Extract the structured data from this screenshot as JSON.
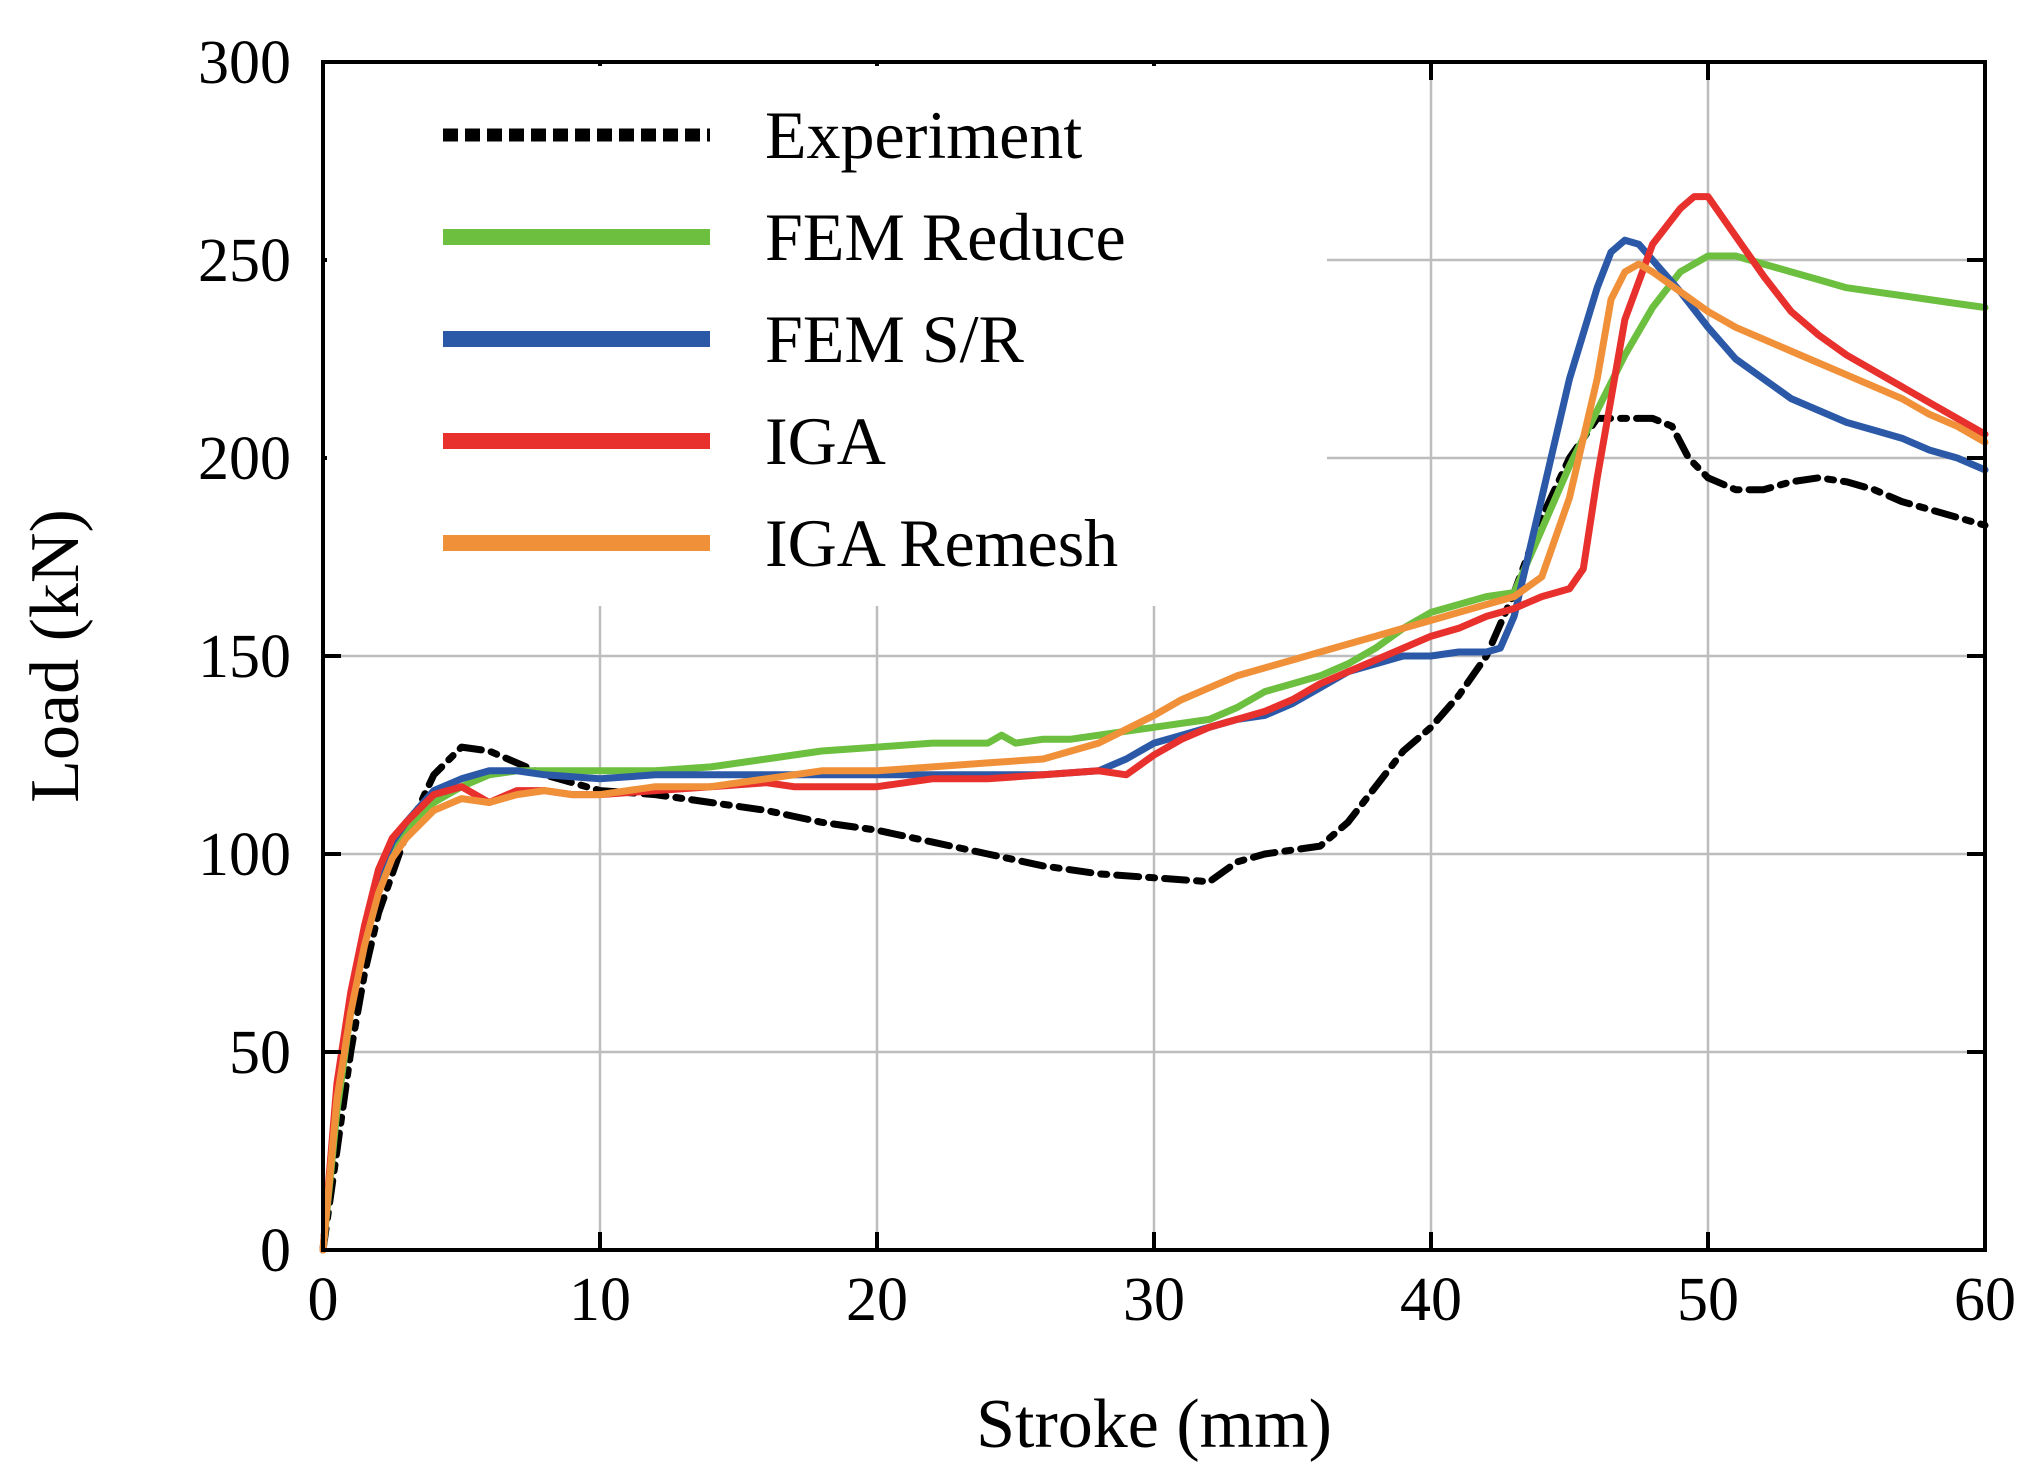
{
  "chart_data": {
    "type": "line",
    "title": "",
    "xlabel": "Stroke (mm)",
    "ylabel": "Load (kN)",
    "xlim": [
      0,
      60
    ],
    "ylim": [
      0,
      300
    ],
    "xticks": [
      0,
      10,
      20,
      30,
      40,
      50,
      60
    ],
    "yticks": [
      0,
      50,
      100,
      150,
      200,
      250,
      300
    ],
    "grid": true,
    "legend_position": "top-left",
    "series": [
      {
        "name": "Experiment",
        "color": "#000000",
        "style": "dash-dot",
        "x": [
          0,
          0.5,
          1,
          1.5,
          2,
          2.5,
          3,
          4,
          5,
          6,
          8,
          10,
          12,
          14,
          16,
          18,
          20,
          22,
          24,
          26,
          28,
          30,
          32,
          33,
          34,
          36,
          37,
          38,
          39,
          40,
          41,
          42,
          43,
          44,
          45,
          46,
          47,
          48,
          48.7,
          49.3,
          50,
          51,
          52,
          53,
          54,
          55,
          56,
          57,
          58,
          59,
          60
        ],
        "y": [
          0,
          25,
          50,
          70,
          85,
          95,
          105,
          120,
          127,
          126,
          120,
          116,
          115,
          113,
          111,
          108,
          106,
          103,
          100,
          97,
          95,
          94,
          93,
          98,
          100,
          102,
          108,
          117,
          126,
          132,
          140,
          150,
          166,
          185,
          200,
          210,
          210,
          210,
          208,
          200,
          195,
          192,
          192,
          194,
          195,
          194,
          192,
          189,
          187,
          185,
          183
        ]
      },
      {
        "name": "FEM Reduce",
        "color": "#6cbf3f",
        "style": "solid",
        "x": [
          0,
          0.5,
          1,
          1.5,
          2,
          2.5,
          3,
          4,
          5,
          6,
          7,
          8,
          10,
          12,
          14,
          16,
          18,
          20,
          22,
          24,
          24.5,
          25,
          26,
          27,
          28,
          29,
          30,
          31,
          32,
          33,
          34,
          35,
          36,
          37,
          38,
          39,
          40,
          41,
          42,
          43,
          44,
          45,
          46,
          47,
          48,
          49,
          50,
          51,
          52,
          53,
          54,
          55,
          56,
          57,
          58,
          59,
          60
        ],
        "y": [
          0,
          35,
          60,
          78,
          92,
          100,
          106,
          113,
          117,
          120,
          121,
          121,
          121,
          121,
          122,
          124,
          126,
          127,
          128,
          128,
          130,
          128,
          129,
          129,
          130,
          131,
          132,
          133,
          134,
          137,
          141,
          143,
          145,
          148,
          152,
          157,
          161,
          163,
          165,
          166,
          182,
          198,
          212,
          226,
          238,
          247,
          251,
          251,
          249,
          247,
          245,
          243,
          242,
          241,
          240,
          239,
          238
        ]
      },
      {
        "name": "FEM S/R",
        "color": "#2b59a8",
        "style": "solid",
        "x": [
          0,
          0.5,
          1,
          1.5,
          2,
          2.5,
          3,
          4,
          5,
          6,
          7,
          8,
          10,
          12,
          14,
          16,
          18,
          20,
          22,
          24,
          26,
          28,
          29,
          30,
          31,
          32,
          33,
          34,
          35,
          36,
          37,
          38,
          39,
          40,
          41,
          42,
          42.5,
          43,
          44,
          45,
          46,
          46.5,
          47,
          47.5,
          48,
          49,
          50,
          51,
          52,
          53,
          54,
          55,
          56,
          57,
          58,
          59,
          60
        ],
        "y": [
          0,
          40,
          62,
          80,
          95,
          103,
          108,
          116,
          119,
          121,
          121,
          120,
          119,
          120,
          120,
          120,
          120,
          120,
          120,
          120,
          120,
          121,
          124,
          128,
          130,
          132,
          134,
          135,
          138,
          142,
          146,
          148,
          150,
          150,
          151,
          151,
          152,
          160,
          190,
          220,
          243,
          252,
          255,
          254,
          250,
          242,
          233,
          225,
          220,
          215,
          212,
          209,
          207,
          205,
          202,
          200,
          197
        ]
      },
      {
        "name": "IGA",
        "color": "#e8302d",
        "style": "solid",
        "x": [
          0,
          0.5,
          1,
          1.5,
          2,
          2.5,
          3,
          4,
          5,
          6,
          7,
          8,
          9,
          10,
          12,
          14,
          16,
          17,
          18,
          20,
          22,
          24,
          26,
          28,
          29,
          30,
          31,
          32,
          33,
          34,
          35,
          36,
          37,
          38,
          39,
          40,
          41,
          42,
          43,
          44,
          45,
          45.5,
          46,
          47,
          48,
          49,
          49.5,
          50,
          51,
          52,
          53,
          54,
          55,
          56,
          57,
          58,
          59,
          60
        ],
        "y": [
          0,
          42,
          65,
          82,
          96,
          104,
          108,
          115,
          117,
          113,
          116,
          116,
          115,
          115,
          116,
          117,
          118,
          117,
          117,
          117,
          119,
          119,
          120,
          121,
          120,
          125,
          129,
          132,
          134,
          136,
          139,
          143,
          146,
          149,
          152,
          155,
          157,
          160,
          162,
          165,
          167,
          172,
          195,
          235,
          254,
          263,
          266,
          266,
          256,
          246,
          237,
          231,
          226,
          222,
          218,
          214,
          210,
          206
        ]
      },
      {
        "name": "IGA Remesh",
        "color": "#f0913a",
        "style": "solid",
        "x": [
          0,
          0.5,
          1,
          1.5,
          2,
          2.5,
          3,
          4,
          5,
          6,
          7,
          8,
          9,
          10,
          12,
          14,
          16,
          18,
          20,
          22,
          24,
          26,
          28,
          30,
          31,
          32,
          33,
          34,
          35,
          36,
          37,
          38,
          39,
          40,
          41,
          42,
          43,
          44,
          45,
          46,
          46.5,
          47,
          47.5,
          48,
          49,
          50,
          51,
          52,
          53,
          54,
          55,
          56,
          57,
          58,
          59,
          60
        ],
        "y": [
          0,
          38,
          60,
          77,
          90,
          99,
          104,
          111,
          114,
          113,
          115,
          116,
          115,
          115,
          117,
          117,
          119,
          121,
          121,
          122,
          123,
          124,
          128,
          135,
          139,
          142,
          145,
          147,
          149,
          151,
          153,
          155,
          157,
          159,
          161,
          163,
          165,
          170,
          190,
          220,
          240,
          247,
          249,
          247,
          242,
          237,
          233,
          230,
          227,
          224,
          221,
          218,
          215,
          211,
          208,
          204
        ]
      }
    ]
  }
}
